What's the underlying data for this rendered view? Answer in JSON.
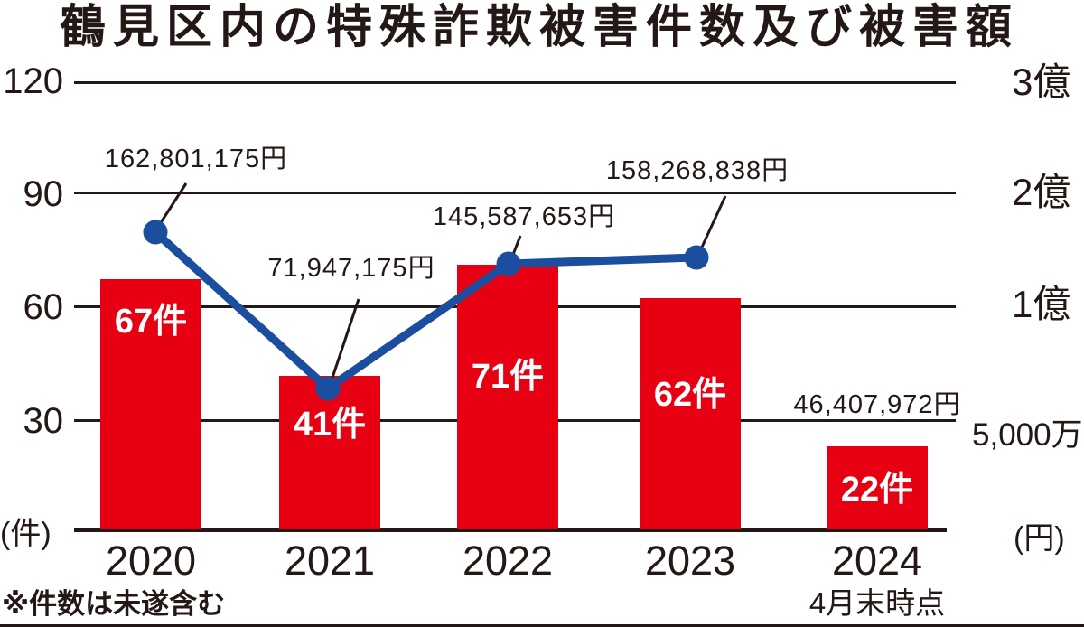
{
  "title": "鶴見区内の特殊詐欺被害件数及び被害額",
  "note": "※件数は未遂含む",
  "axes": {
    "left_unit": "(件)",
    "right_unit": "(円)",
    "left_ticks": [
      "120",
      "90",
      "60",
      "30"
    ],
    "right_ticks": [
      "3億",
      "2億",
      "1億",
      "5,000万"
    ]
  },
  "colors": {
    "bar_red": "#e60012",
    "line_blue": "#1b4e9e",
    "ink": "#231815"
  },
  "chart_data": {
    "type": "bar+line",
    "title": "鶴見区内の特殊詐欺被害件数及び被害額",
    "categories": [
      "2020",
      "2021",
      "2022",
      "2023",
      "2024"
    ],
    "category_notes": [
      "",
      "",
      "",
      "",
      "4月末時点"
    ],
    "series": [
      {
        "name": "被害件数",
        "type": "bar",
        "unit": "件",
        "axis": "left",
        "color": "#e60012",
        "values": [
          67,
          41,
          71,
          62,
          22
        ],
        "labels": [
          "67件",
          "41件",
          "71件",
          "62件",
          "22件"
        ]
      },
      {
        "name": "被害額",
        "type": "line",
        "unit": "円",
        "axis": "right",
        "color": "#1b4e9e",
        "values": [
          162801175,
          71947175,
          145587653,
          158268838,
          46407972
        ],
        "labels": [
          "162,801,175円",
          "71,947,175円",
          "145,587,653円",
          "158,268,838円",
          "46,407,972円"
        ],
        "has_marker": [
          true,
          true,
          true,
          true,
          false
        ]
      }
    ],
    "left_axis": {
      "unit": "(件)",
      "ticks": [
        120,
        90,
        60,
        30
      ],
      "min": 0
    },
    "right_axis": {
      "unit": "(円)",
      "ticks": [
        "3億",
        "2億",
        "1億",
        "5,000万"
      ],
      "min": 0
    },
    "gridlines": true,
    "legend": "none",
    "footnote": "※件数は未遂含む"
  }
}
